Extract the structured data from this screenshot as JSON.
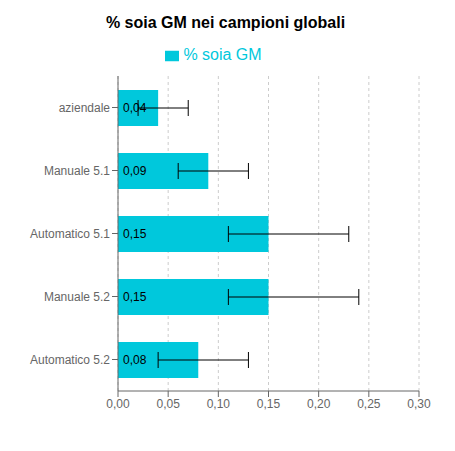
{
  "chart_data": {
    "type": "bar",
    "title": "% soia GM nei campioni globali",
    "orientation": "horizontal",
    "categories": [
      "Automatico 5.2",
      "Manuale 5.2",
      "Automatico 5.1",
      "Manuale 5.1",
      "aziendale"
    ],
    "series": [
      {
        "name": "% soia GM",
        "color": "#00C8DC",
        "values": [
          0.08,
          0.15,
          0.15,
          0.09,
          0.04
        ],
        "value_labels": [
          "0,08",
          "0,15",
          "0,15",
          "0,09",
          "0,04"
        ],
        "errors_plus": [
          0.05,
          0.09,
          0.08,
          0.04,
          0.03
        ],
        "errors_minus": [
          0.04,
          0.04,
          0.04,
          0.03,
          0.02
        ]
      }
    ],
    "xlim": [
      0.0,
      0.3
    ],
    "xticks": [
      {
        "value": 0.0,
        "label": "0,00"
      },
      {
        "value": 0.05,
        "label": "0,05"
      },
      {
        "value": 0.1,
        "label": "0,10"
      },
      {
        "value": 0.15,
        "label": "0,15"
      },
      {
        "value": 0.2,
        "label": "0,20"
      },
      {
        "value": 0.25,
        "label": "0,25"
      },
      {
        "value": 0.3,
        "label": "0,30"
      }
    ],
    "grid": true,
    "legend": "top",
    "data_labels": true
  }
}
